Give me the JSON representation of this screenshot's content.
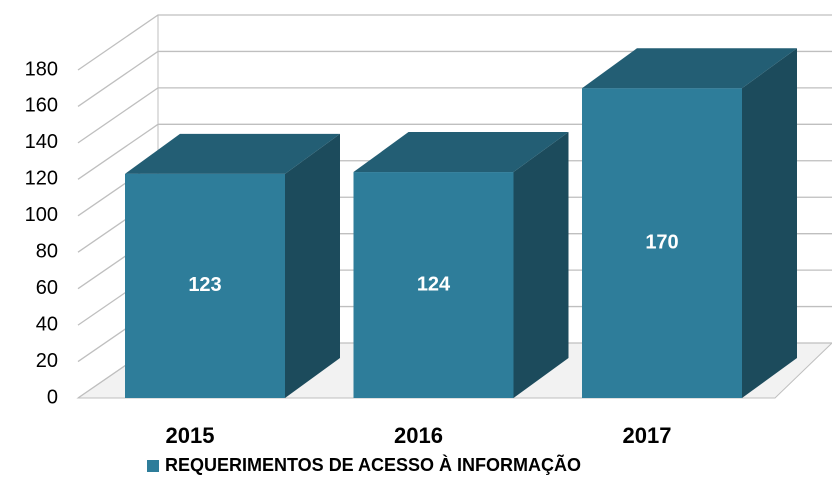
{
  "chart_data": {
    "type": "bar3d",
    "categories": [
      "2015",
      "2016",
      "2017"
    ],
    "series": [
      {
        "name": "REQUERIMENTOS DE ACESSO À INFORMAÇÃO",
        "color": "#2e7d9a",
        "values": [
          123,
          124,
          170
        ]
      }
    ],
    "ylim": [
      0,
      180
    ],
    "yticks": [
      0,
      20,
      40,
      60,
      80,
      100,
      120,
      140,
      160,
      180
    ],
    "grid": true,
    "legend": "bottom"
  }
}
